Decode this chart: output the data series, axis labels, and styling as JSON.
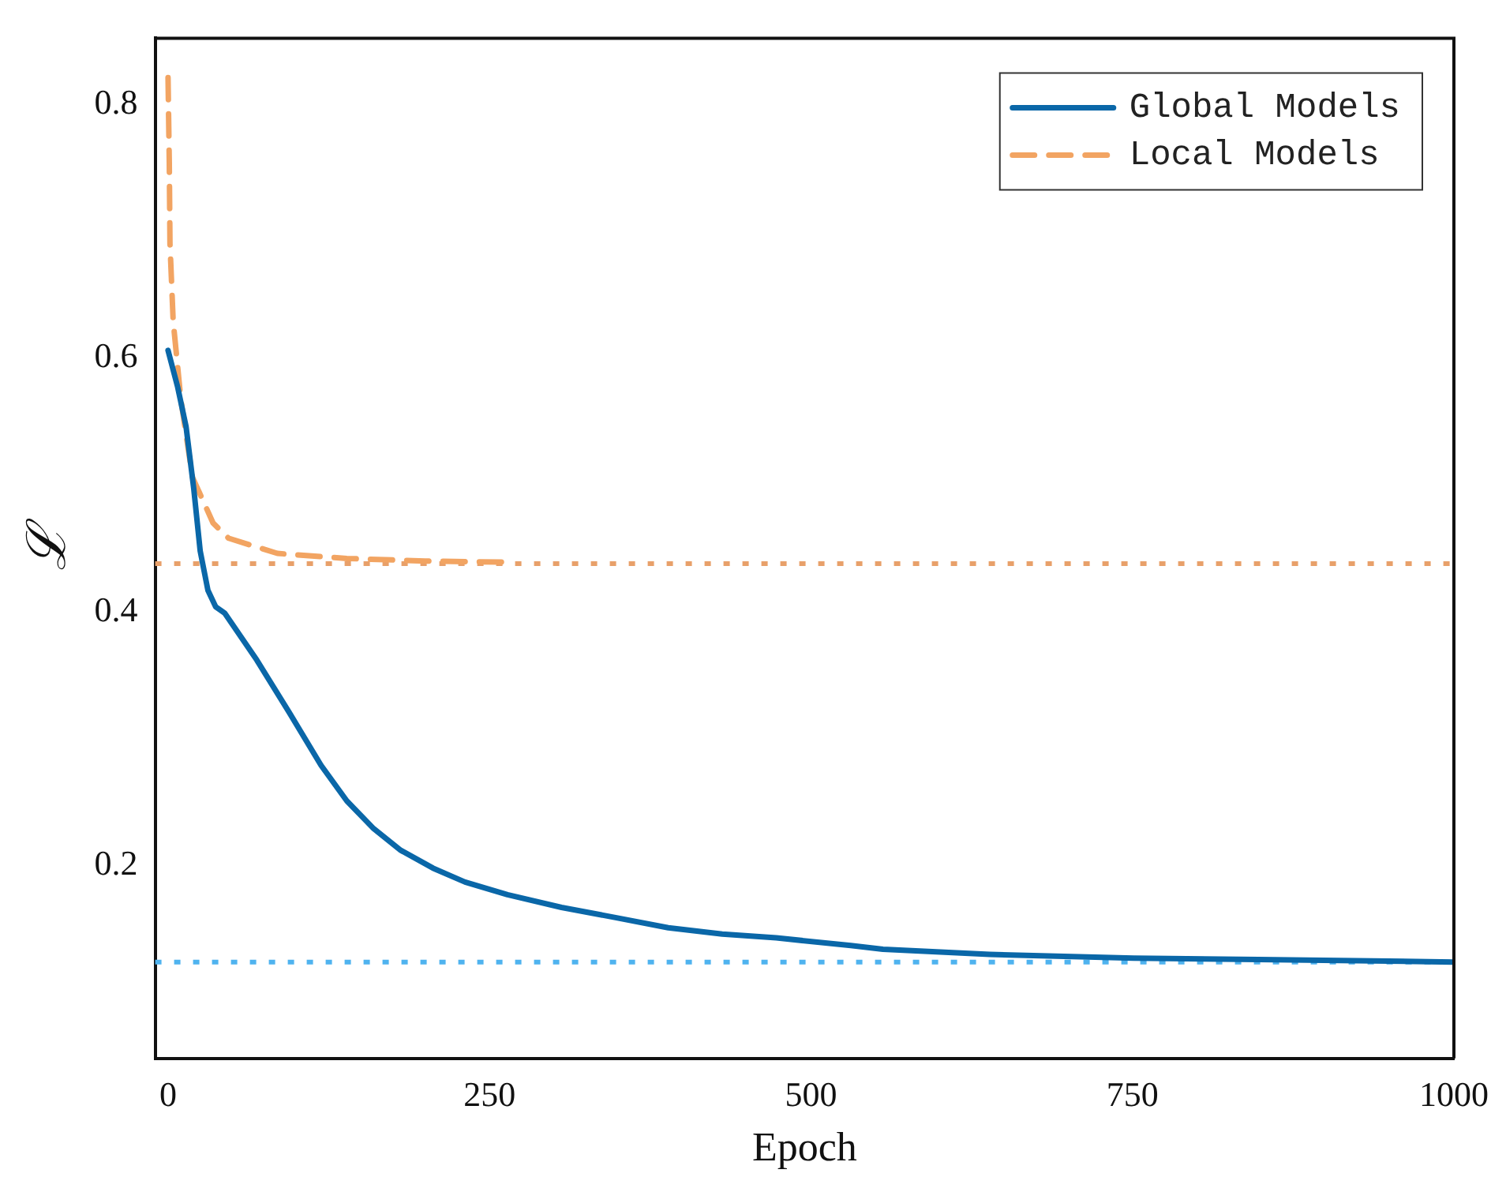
{
  "chart_data": {
    "type": "line",
    "xlabel": "Epoch",
    "ylabel": "ℒ",
    "xlim": [
      -10,
      1000
    ],
    "ylim": [
      0.048,
      0.852
    ],
    "xticks": [
      0,
      250,
      500,
      750,
      1000
    ],
    "yticks": [
      0.2,
      0.4,
      0.6,
      0.8
    ],
    "grid": false,
    "legend": "top right",
    "marker": "none",
    "series": [
      {
        "name": "Global Models",
        "color": "#0a67a8",
        "line_style": "solid",
        "x": [
          0,
          7.5,
          14,
          20,
          25,
          31,
          37,
          44,
          69,
          94,
          119,
          139,
          160,
          181,
          206,
          231,
          264,
          306,
          348,
          389,
          431,
          473,
          531,
          556,
          639,
          751,
          848,
          1000
        ],
        "values": [
          0.606,
          0.577,
          0.546,
          0.497,
          0.448,
          0.417,
          0.404,
          0.399,
          0.362,
          0.321,
          0.279,
          0.251,
          0.229,
          0.212,
          0.198,
          0.187,
          0.177,
          0.167,
          0.159,
          0.151,
          0.146,
          0.143,
          0.137,
          0.134,
          0.13,
          0.127,
          0.126,
          0.124
        ]
      },
      {
        "name": "Local Models",
        "color": "#f2a462",
        "line_style": "dashed",
        "x": [
          0,
          1,
          1.5,
          4,
          10,
          19,
          35,
          47,
          85,
          139,
          200,
          269
        ],
        "values": [
          0.821,
          0.752,
          0.69,
          0.629,
          0.567,
          0.506,
          0.47,
          0.458,
          0.446,
          0.442,
          0.44,
          0.439
        ]
      }
    ],
    "ref_lines": [
      {
        "axis": "y",
        "value": 0.438,
        "color": "#e8a06a",
        "line_style": "dotted"
      },
      {
        "axis": "y",
        "value": 0.124,
        "color": "#4fb3ef",
        "line_style": "dotted"
      }
    ]
  }
}
